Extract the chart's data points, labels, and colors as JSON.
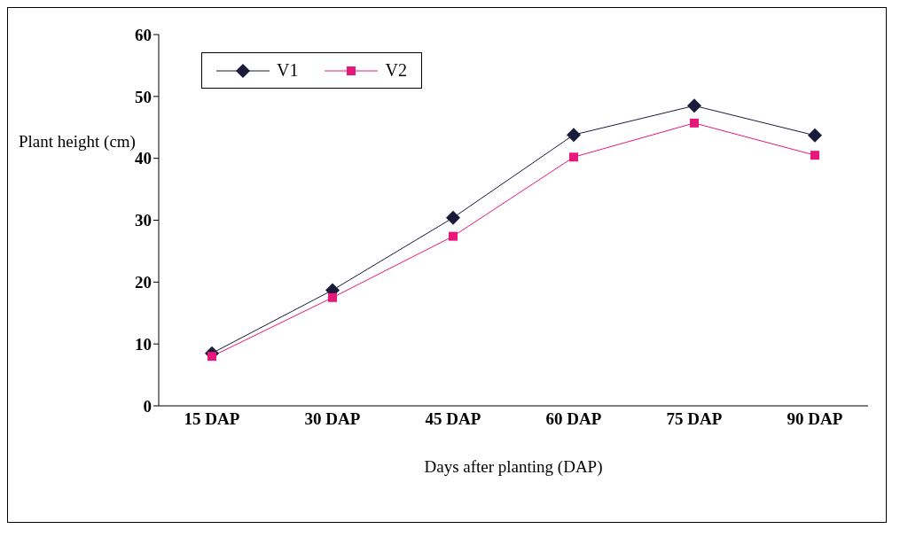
{
  "chart_data": {
    "type": "line",
    "xlabel": "Days after planting (DAP)",
    "ylabel": "Plant height (cm)",
    "categories": [
      "15 DAP",
      "30 DAP",
      "45 DAP",
      "60 DAP",
      "75 DAP",
      "90 DAP"
    ],
    "series": [
      {
        "name": "V1",
        "color": "#1a1a3a",
        "marker": "diamond",
        "values": [
          8.5,
          18.7,
          30.4,
          43.8,
          48.5,
          43.7
        ]
      },
      {
        "name": "V2",
        "color": "#e8177a",
        "marker": "square",
        "values": [
          8.0,
          17.5,
          27.4,
          40.2,
          45.7,
          40.5
        ]
      }
    ],
    "ylim": [
      0,
      60
    ],
    "yticks": [
      0,
      10,
      20,
      30,
      40,
      50,
      60
    ],
    "grid": false,
    "legend": "top left",
    "line_style": "solid"
  }
}
